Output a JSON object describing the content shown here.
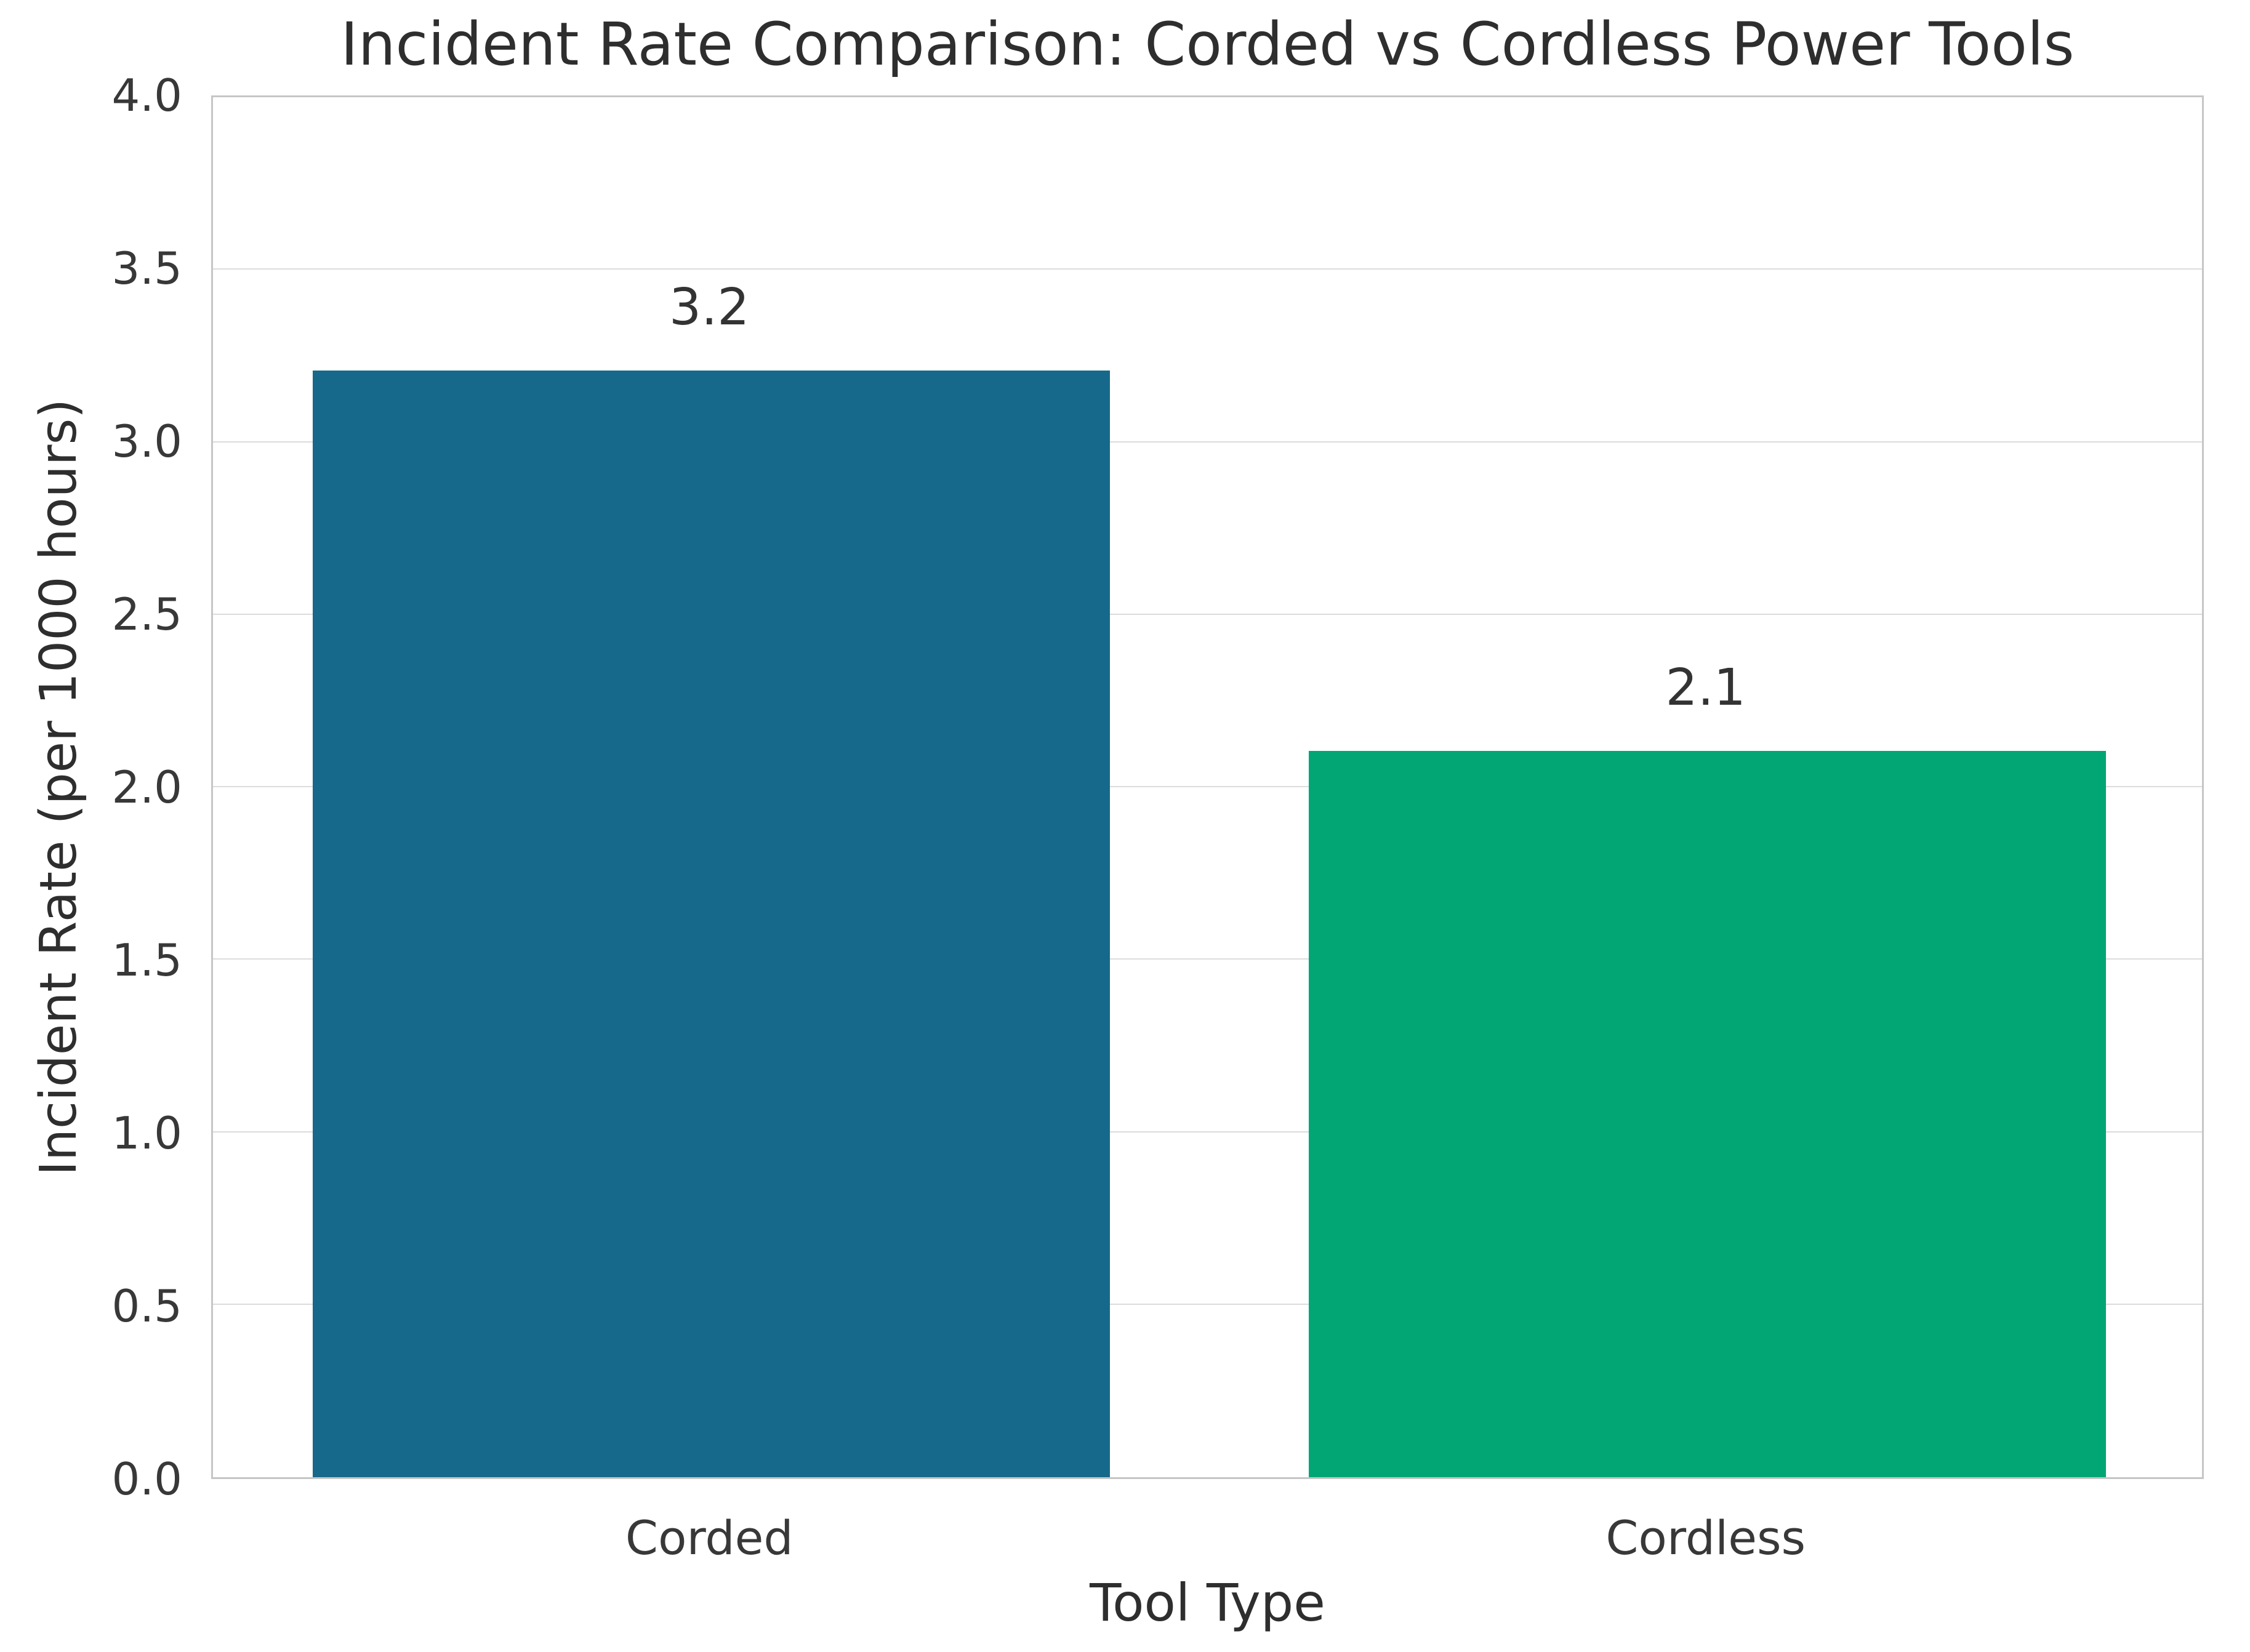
{
  "figure": {
    "background": "#ffffff"
  },
  "chart_data": {
    "type": "bar",
    "title": "Incident Rate Comparison: Corded vs Cordless Power Tools",
    "xlabel": "Tool Type",
    "ylabel": "Incident Rate (per 1000 hours)",
    "categories": [
      "Corded",
      "Cordless"
    ],
    "values": [
      3.2,
      2.1
    ],
    "value_labels": [
      "3.2",
      "2.1"
    ],
    "bar_colors": [
      "#16698a",
      "#02a674"
    ],
    "bar_width_fraction": 0.8,
    "ylim": [
      0.0,
      4.0
    ],
    "yticks": [
      0.0,
      0.5,
      1.0,
      1.5,
      2.0,
      2.5,
      3.0,
      3.5,
      4.0
    ],
    "ytick_labels": [
      "0.0",
      "0.5",
      "1.0",
      "1.5",
      "2.0",
      "2.5",
      "3.0",
      "3.5",
      "4.0"
    ],
    "grid": true,
    "grid_color": "#dcdcdc",
    "spine_color": "#c6c6c6",
    "text_color": "#333333",
    "legend": null
  }
}
